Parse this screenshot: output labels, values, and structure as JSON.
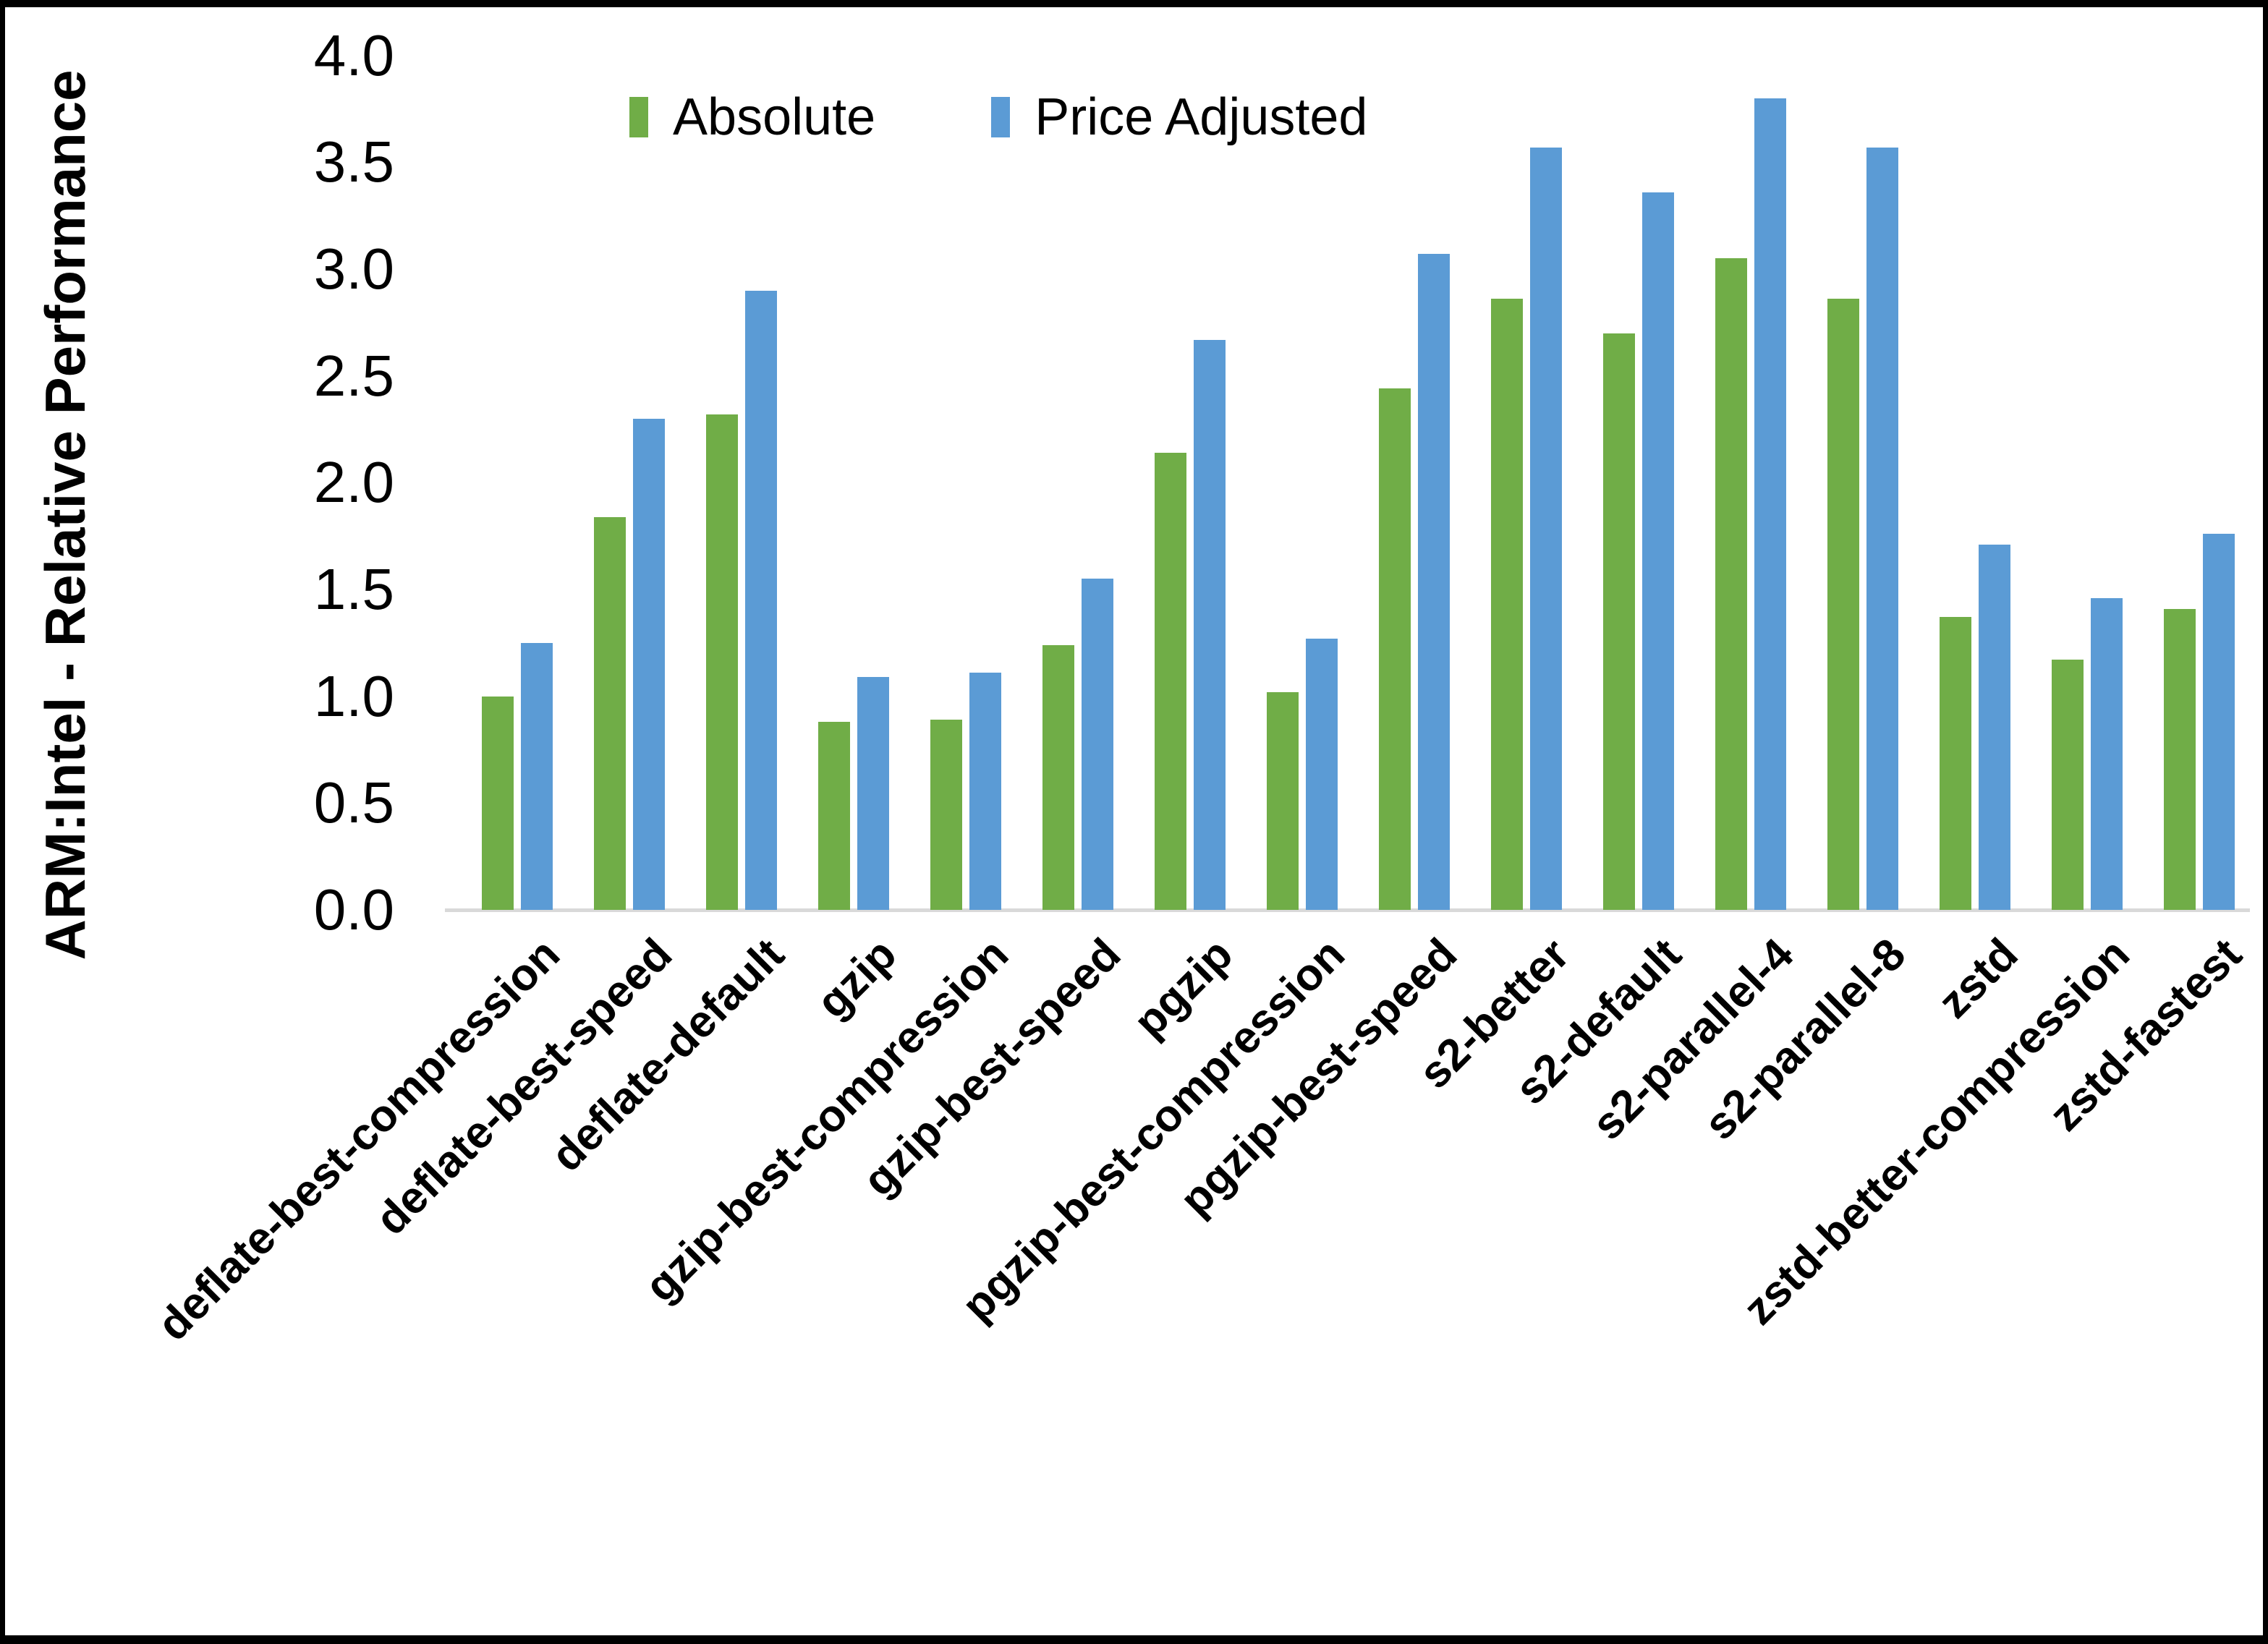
{
  "chart_data": {
    "type": "bar",
    "title": "",
    "xlabel": "",
    "ylabel": "ARM:Intel - Relative Performance",
    "ylim": [
      0.0,
      4.0
    ],
    "ytick_step": 0.5,
    "yticks": [
      "4.0",
      "3.5",
      "3.0",
      "2.5",
      "2.0",
      "1.5",
      "1.0",
      "0.5",
      "0.0"
    ],
    "grid": false,
    "legend_position": "top-center",
    "axis_line_color": "#D9D9D9",
    "categories": [
      "deflate-best-compression",
      "deflate-best-speed",
      "deflate-default",
      "gzip",
      "gzip-best-compression",
      "gzip-best-speed",
      "pgzip",
      "pgzip-best-compression",
      "pgzip-best-speed",
      "s2-better",
      "s2-default",
      "s2-parallel-4",
      "s2-parallel-8",
      "zstd",
      "zstd-better-compression",
      "zstd-fastest"
    ],
    "series": [
      {
        "name": "Absolute",
        "color": "#70AD47",
        "values": [
          1.0,
          1.84,
          2.32,
          0.88,
          0.89,
          1.24,
          2.14,
          1.02,
          2.44,
          2.86,
          2.7,
          3.05,
          2.86,
          1.37,
          1.17,
          1.41
        ]
      },
      {
        "name": "Price Adjusted",
        "color": "#5B9BD5",
        "values": [
          1.25,
          2.3,
          2.9,
          1.09,
          1.11,
          1.55,
          2.67,
          1.27,
          3.07,
          3.57,
          3.36,
          3.8,
          3.57,
          1.71,
          1.46,
          1.76
        ]
      }
    ]
  }
}
